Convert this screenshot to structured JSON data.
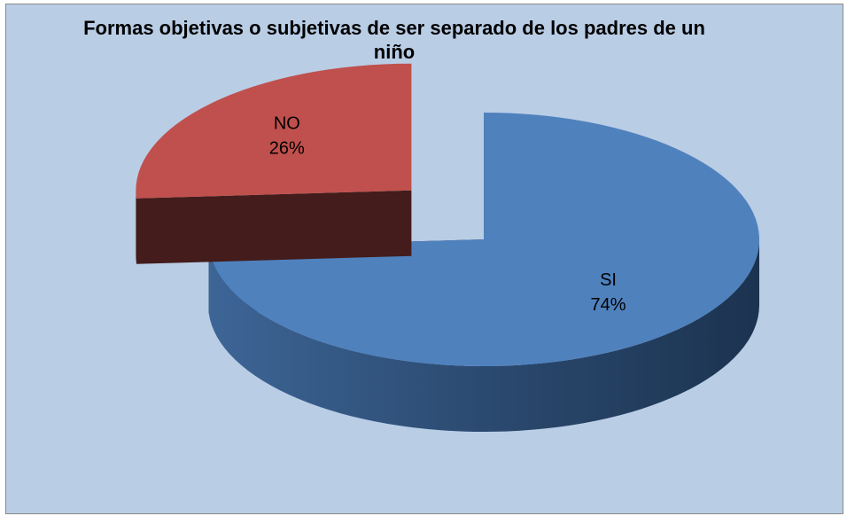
{
  "chart_data": {
    "type": "pie",
    "title": "Formas objetivas o subjetivas de ser separado de los padres de un niño",
    "categories": [
      "SI",
      "NO"
    ],
    "values": [
      74,
      26
    ],
    "value_labels": [
      "74%",
      "26%"
    ],
    "colors": [
      "#4f81bd",
      "#c0504d"
    ],
    "explode": [
      false,
      true
    ]
  }
}
